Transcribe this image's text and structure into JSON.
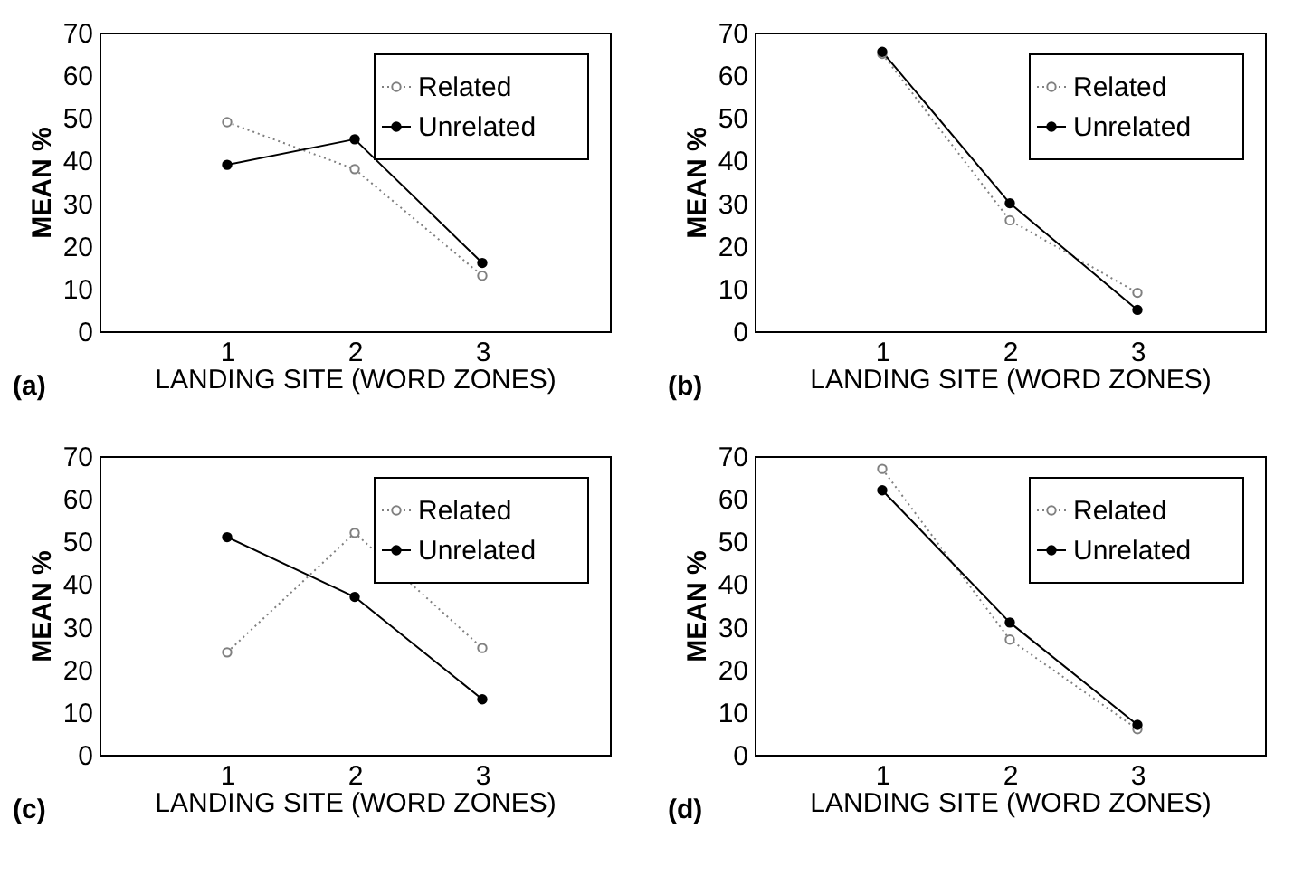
{
  "chart_data": [
    {
      "type": "line",
      "xlabel": "LANDING SITE (WORD ZONES)",
      "ylabel": "MEAN %",
      "x": [
        1,
        2,
        3
      ],
      "xlim": [
        0,
        4
      ],
      "xticks": [
        1,
        2,
        3
      ],
      "ylim": [
        0,
        70
      ],
      "yticks": [
        0,
        10,
        20,
        30,
        40,
        50,
        60,
        70
      ],
      "grid": false,
      "legend": "top right",
      "marker": "circle",
      "annotations": [
        "(a)"
      ],
      "series": [
        {
          "name": "Related",
          "color": "#808080",
          "line_style": "dotted",
          "values": [
            49,
            38,
            13
          ]
        },
        {
          "name": "Unrelated",
          "color": "#000000",
          "line_style": "solid",
          "values": [
            39,
            45,
            16
          ]
        }
      ]
    },
    {
      "type": "line",
      "xlabel": "LANDING SITE (WORD ZONES)",
      "ylabel": "MEAN %",
      "x": [
        1,
        2,
        3
      ],
      "xlim": [
        0,
        4
      ],
      "xticks": [
        1,
        2,
        3
      ],
      "ylim": [
        0,
        70
      ],
      "yticks": [
        0,
        10,
        20,
        30,
        40,
        50,
        60,
        70
      ],
      "grid": false,
      "legend": "top right",
      "marker": "circle",
      "annotations": [
        "(b)"
      ],
      "series": [
        {
          "name": "Related",
          "color": "#808080",
          "line_style": "dotted",
          "values": [
            65,
            26,
            9
          ]
        },
        {
          "name": "Unrelated",
          "color": "#000000",
          "line_style": "solid",
          "values": [
            65.5,
            30,
            5
          ]
        }
      ]
    },
    {
      "type": "line",
      "xlabel": "LANDING SITE (WORD ZONES)",
      "ylabel": "MEAN %",
      "x": [
        1,
        2,
        3
      ],
      "xlim": [
        0,
        4
      ],
      "xticks": [
        1,
        2,
        3
      ],
      "ylim": [
        0,
        70
      ],
      "yticks": [
        0,
        10,
        20,
        30,
        40,
        50,
        60,
        70
      ],
      "grid": false,
      "legend": "top right",
      "marker": "circle",
      "annotations": [
        "(c)"
      ],
      "series": [
        {
          "name": "Related",
          "color": "#808080",
          "line_style": "dotted",
          "values": [
            24,
            52,
            25
          ]
        },
        {
          "name": "Unrelated",
          "color": "#000000",
          "line_style": "solid",
          "values": [
            51,
            37,
            13
          ]
        }
      ]
    },
    {
      "type": "line",
      "xlabel": "LANDING SITE (WORD ZONES)",
      "ylabel": "MEAN %",
      "x": [
        1,
        2,
        3
      ],
      "xlim": [
        0,
        4
      ],
      "xticks": [
        1,
        2,
        3
      ],
      "ylim": [
        0,
        70
      ],
      "yticks": [
        0,
        10,
        20,
        30,
        40,
        50,
        60,
        70
      ],
      "grid": false,
      "legend": "top right",
      "marker": "circle",
      "annotations": [
        "(d)"
      ],
      "series": [
        {
          "name": "Related",
          "color": "#808080",
          "line_style": "dotted",
          "values": [
            67,
            27,
            6
          ]
        },
        {
          "name": "Unrelated",
          "color": "#000000",
          "line_style": "solid",
          "values": [
            62,
            31,
            7
          ]
        }
      ]
    }
  ]
}
